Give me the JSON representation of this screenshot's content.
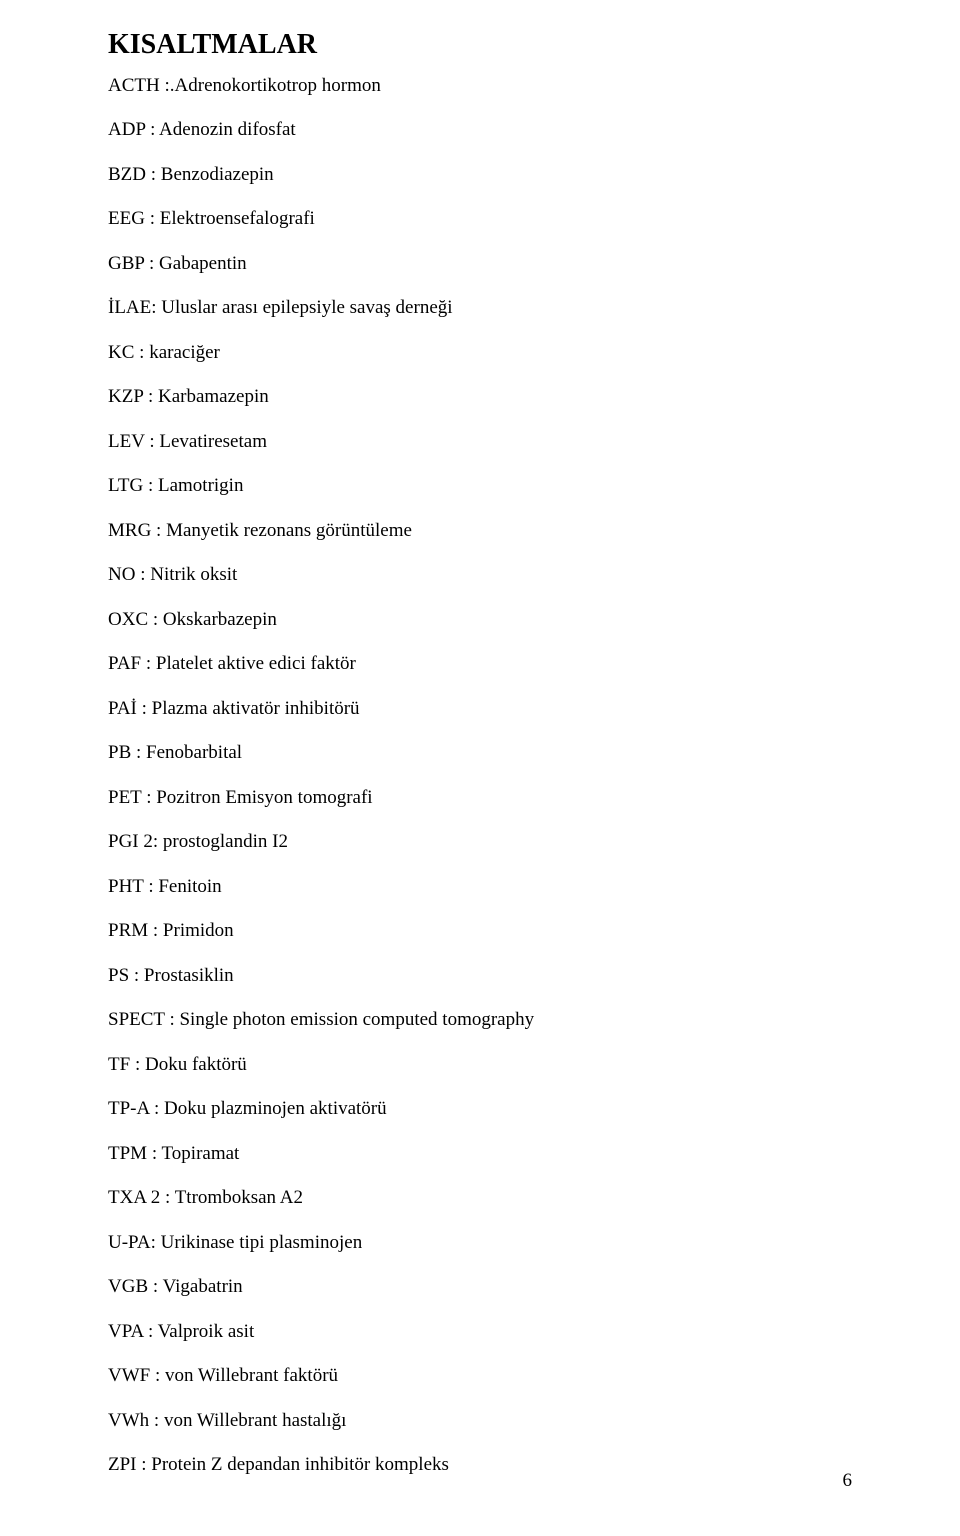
{
  "heading": "KISALTMALAR",
  "separator": " : ",
  "entries": [
    {
      "abbr": "ACTH",
      "sep": " :.",
      "desc": "Adrenokortikotrop hormon"
    },
    {
      "abbr": "ADP",
      "sep": " : ",
      "desc": "Adenozin difosfat"
    },
    {
      "abbr": "BZD",
      "sep": " : ",
      "desc": "Benzodiazepin"
    },
    {
      "abbr": "EEG",
      "sep": " : ",
      "desc": "Elektroensefalografi"
    },
    {
      "abbr": "GBP",
      "sep": " : ",
      "desc": "Gabapentin"
    },
    {
      "abbr": "İLAE",
      "sep": ": ",
      "desc": "Uluslar arası epilepsiyle savaş derneği"
    },
    {
      "abbr": "KC",
      "sep": " : ",
      "desc": "karaciğer"
    },
    {
      "abbr": "KZP",
      "sep": " : ",
      "desc": "Karbamazepin"
    },
    {
      "abbr": "LEV",
      "sep": " : ",
      "desc": "Levatiresetam"
    },
    {
      "abbr": "LTG",
      "sep": " : ",
      "desc": "Lamotrigin"
    },
    {
      "abbr": "MRG",
      "sep": " : ",
      "desc": "Manyetik rezonans görüntüleme"
    },
    {
      "abbr": "NO",
      "sep": " : ",
      "desc": "Nitrik oksit"
    },
    {
      "abbr": "OXC",
      "sep": " : ",
      "desc": "Okskarbazepin"
    },
    {
      "abbr": "PAF",
      "sep": " : ",
      "desc": "Platelet aktive edici faktör"
    },
    {
      "abbr": "PAİ",
      "sep": " : ",
      "desc": "Plazma aktivatör inhibitörü"
    },
    {
      "abbr": "PB",
      "sep": " : ",
      "desc": "Fenobarbital"
    },
    {
      "abbr": "PET",
      "sep": " : ",
      "desc": "Pozitron Emisyon tomografi"
    },
    {
      "abbr": "PGI 2",
      "sep": ": ",
      "desc": "prostoglandin I2"
    },
    {
      "abbr": "PHT",
      "sep": " : ",
      "desc": "Fenitoin"
    },
    {
      "abbr": "PRM",
      "sep": " : ",
      "desc": "Primidon"
    },
    {
      "abbr": "PS",
      "sep": " : ",
      "desc": "Prostasiklin"
    },
    {
      "abbr": "SPECT",
      "sep": " : ",
      "desc": "Single photon emission computed tomography"
    },
    {
      "abbr": "TF",
      "sep": " : ",
      "desc": "Doku faktörü"
    },
    {
      "abbr": "TP-A",
      "sep": " : ",
      "desc": "Doku plazminojen aktivatörü"
    },
    {
      "abbr": "TPM",
      "sep": " : ",
      "desc": "Topiramat"
    },
    {
      "abbr": "TXA 2 :",
      "sep": " ",
      "desc": "Ttromboksan  A2"
    },
    {
      "abbr": "U-PA",
      "sep": ": ",
      "desc": "Urikinase tipi plasminojen"
    },
    {
      "abbr": "VGB",
      "sep": " : ",
      "desc": "Vigabatrin"
    },
    {
      "abbr": "VPA",
      "sep": " : ",
      "desc": "Valproik asit"
    },
    {
      "abbr": "VWF",
      "sep": " : ",
      "desc": "von Willebrant faktörü"
    },
    {
      "abbr": "VWh",
      "sep": " : ",
      "desc": "von Willebrant hastalığı"
    },
    {
      "abbr": "ZPI",
      "sep": " : ",
      "desc": "Protein Z  depandan inhibitör kompleks"
    }
  ],
  "pageNumber": "6",
  "style": {
    "background_color": "#ffffff",
    "text_color": "#000000",
    "heading_fontsize": 28,
    "body_fontsize": 19,
    "font_family": "Times New Roman"
  }
}
